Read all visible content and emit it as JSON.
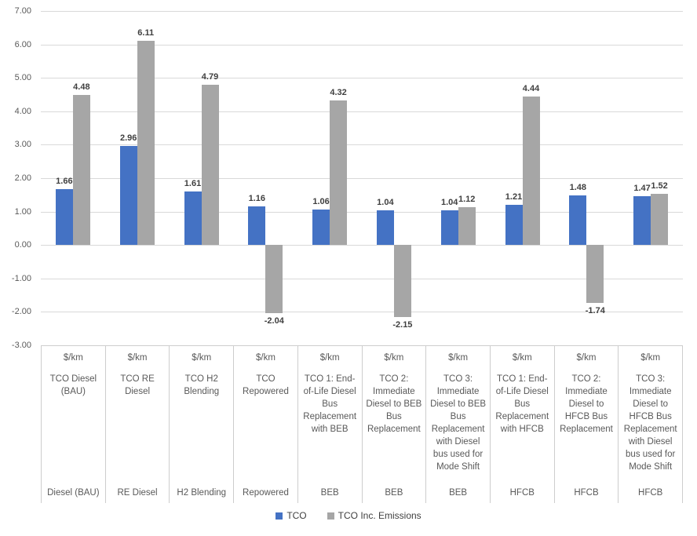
{
  "chart_data": {
    "type": "bar",
    "title": "",
    "xlabel": "",
    "ylabel": "",
    "y_axis": {
      "min": -3.0,
      "max": 7.0,
      "step": 1.0,
      "tick_labels": [
        "7.00",
        "6.00",
        "5.00",
        "4.00",
        "3.00",
        "2.00",
        "1.00",
        "0.00",
        "-1.00",
        "-2.00",
        "-3.00"
      ]
    },
    "grid": "horizontal",
    "legend_position": "bottom",
    "series": [
      {
        "name": "TCO",
        "color": "#4472c4",
        "values": [
          1.66,
          2.96,
          1.61,
          1.16,
          1.06,
          1.04,
          1.04,
          1.21,
          1.48,
          1.47
        ]
      },
      {
        "name": "TCO Inc. Emissions",
        "color": "#a6a6a6",
        "values": [
          4.48,
          6.11,
          4.79,
          -2.04,
          4.32,
          -2.15,
          1.12,
          4.44,
          -1.74,
          1.52
        ]
      }
    ],
    "categories": [
      {
        "unit": "$/km",
        "scenario": "TCO Diesel (BAU)",
        "fuel": "Diesel (BAU)"
      },
      {
        "unit": "$/km",
        "scenario": "TCO RE Diesel",
        "fuel": "RE Diesel"
      },
      {
        "unit": "$/km",
        "scenario": "TCO H2 Blending",
        "fuel": "H2 Blending"
      },
      {
        "unit": "$/km",
        "scenario": "TCO Repowered",
        "fuel": "Repowered"
      },
      {
        "unit": "$/km",
        "scenario": "TCO 1: End-of-Life Diesel Bus Replacement with BEB",
        "fuel": "BEB"
      },
      {
        "unit": "$/km",
        "scenario": "TCO 2: Immediate Diesel to BEB Bus Replacement",
        "fuel": "BEB"
      },
      {
        "unit": "$/km",
        "scenario": "TCO 3: Immediate Diesel to BEB Bus Replacement with Diesel bus used for Mode Shift",
        "fuel": "BEB"
      },
      {
        "unit": "$/km",
        "scenario": "TCO 1: End-of-Life Diesel Bus Replacement with HFCB",
        "fuel": "HFCB"
      },
      {
        "unit": "$/km",
        "scenario": "TCO 2: Immediate Diesel to HFCB Bus Replacement",
        "fuel": "HFCB"
      },
      {
        "unit": "$/km",
        "scenario": "TCO 3: Immediate Diesel to HFCB Bus Replacement with Diesel bus used for Mode Shift",
        "fuel": "HFCB"
      }
    ],
    "colors": {
      "gridline": "#d9d9d9",
      "axis_text": "#595959",
      "data_label_text": "#3f3f3f",
      "table_border": "#cdcdcd"
    }
  }
}
